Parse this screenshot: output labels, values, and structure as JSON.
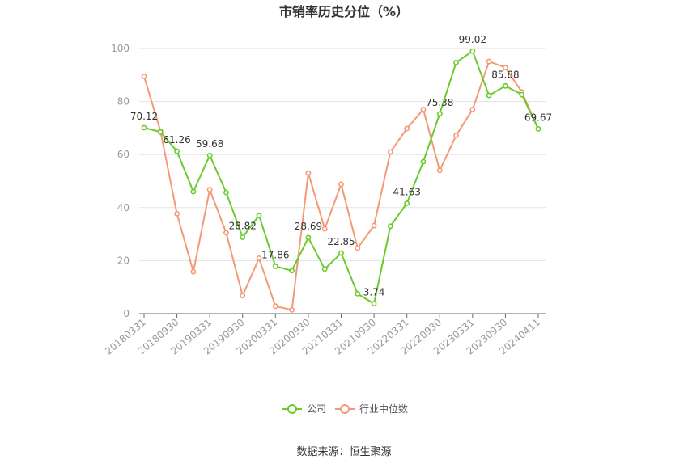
{
  "chart_data": {
    "type": "line",
    "title": "市销率历史分位（%）",
    "ylim": [
      0,
      100
    ],
    "yticks": [
      0,
      20,
      40,
      60,
      80,
      100
    ],
    "xticks": [
      "20180331",
      "20180930",
      "20190331",
      "20190930",
      "20200331",
      "20200930",
      "20210331",
      "20210930",
      "20220331",
      "20220930",
      "20230331",
      "20230930",
      "20240411"
    ],
    "x": [
      "20180331",
      "20180630",
      "20180930",
      "20181231",
      "20190331",
      "20190630",
      "20190930",
      "20191231",
      "20200331",
      "20200630",
      "20200930",
      "20201231",
      "20210331",
      "20210630",
      "20210930",
      "20211231",
      "20220331",
      "20220630",
      "20220930",
      "20221231",
      "20230331",
      "20230630",
      "20230930",
      "20231231",
      "20240411"
    ],
    "series": [
      {
        "name": "公司",
        "color": "#6acb2c",
        "values": [
          70.12,
          68.5,
          61.26,
          46.0,
          59.68,
          45.7,
          28.82,
          37.0,
          17.86,
          16.2,
          28.69,
          16.8,
          22.85,
          7.5,
          3.74,
          33.0,
          41.63,
          57.3,
          75.38,
          94.7,
          99.02,
          82.3,
          85.88,
          82.6,
          69.67
        ],
        "labels": {
          "0": "70.12",
          "2": "61.26",
          "4": "59.68",
          "6": "28.82",
          "8": "17.86",
          "10": "28.69",
          "12": "22.85",
          "14": "3.74",
          "16": "41.63",
          "18": "75.38",
          "20": "99.02",
          "22": "85.88",
          "24": "69.67"
        }
      },
      {
        "name": "行业中位数",
        "color": "#f29a76",
        "values": [
          89.5,
          68.8,
          37.7,
          15.8,
          46.8,
          30.5,
          6.8,
          20.9,
          2.8,
          1.4,
          53.0,
          32.0,
          48.8,
          24.7,
          33.2,
          61.0,
          69.8,
          77.0,
          54.0,
          67.2,
          77.0,
          95.1,
          92.8,
          83.6,
          69.7
        ],
        "labels": {}
      }
    ],
    "legend_position": "bottom-center",
    "grid": true
  },
  "source": "数据来源：恒生聚源"
}
